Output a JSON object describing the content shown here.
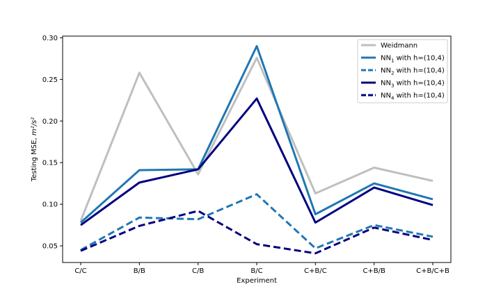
{
  "chart_data": {
    "type": "line",
    "categories": [
      "C/C",
      "B/B",
      "C/B",
      "B/C",
      "C+B/C",
      "C+B/B",
      "C+B/C+B"
    ],
    "xlabel": "Experiment",
    "ylabel_prefix": "Testing MSE, ",
    "ylabel_unit": "m²/s²",
    "ylim": [
      0.03,
      0.302
    ],
    "yticks": [
      0.05,
      0.1,
      0.15,
      0.2,
      0.25,
      0.3
    ],
    "ytick_labels": [
      "0.05",
      "0.10",
      "0.15",
      "0.20",
      "0.25",
      "0.30"
    ],
    "grid": false,
    "legend_position": "top-right",
    "series": [
      {
        "name": "Weidmann",
        "legend_main": "Weidmann",
        "legend_sub": "",
        "legend_rest": "",
        "color": "#bfbfbf",
        "dash": "solid",
        "values": [
          0.08,
          0.258,
          0.136,
          0.276,
          0.113,
          0.144,
          0.128
        ]
      },
      {
        "name": "NN1 with h=(10,4)",
        "legend_main": "NN",
        "legend_sub": "1",
        "legend_rest": " with h=(10,4)",
        "color": "#1f77b4",
        "dash": "solid",
        "values": [
          0.078,
          0.141,
          0.142,
          0.29,
          0.088,
          0.125,
          0.106
        ]
      },
      {
        "name": "NN2 with h=(10,4)",
        "legend_main": "NN",
        "legend_sub": "2",
        "legend_rest": " with h=(10,4)",
        "color": "#1f77b4",
        "dash": "dashed",
        "values": [
          0.045,
          0.084,
          0.082,
          0.112,
          0.047,
          0.075,
          0.061
        ]
      },
      {
        "name": "NN3 with h=(10,4)",
        "legend_main": "NN",
        "legend_sub": "3",
        "legend_rest": " with h=(10,4)",
        "color": "#000080",
        "dash": "solid",
        "values": [
          0.075,
          0.126,
          0.142,
          0.227,
          0.078,
          0.12,
          0.099
        ]
      },
      {
        "name": "NN4 with h=(10,4)",
        "legend_main": "NN",
        "legend_sub": "4",
        "legend_rest": " with h=(10,4)",
        "color": "#000080",
        "dash": "dashed",
        "values": [
          0.044,
          0.074,
          0.092,
          0.052,
          0.041,
          0.072,
          0.057
        ]
      }
    ]
  }
}
